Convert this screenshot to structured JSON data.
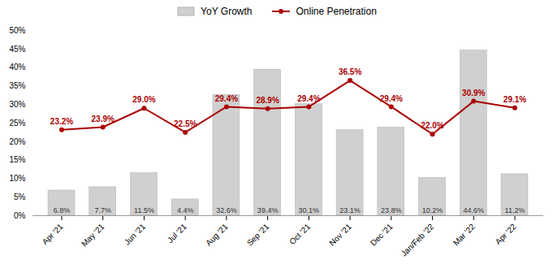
{
  "chart_data": {
    "type": "bar",
    "categories": [
      "Apr '21",
      "May '21",
      "Jun '21",
      "Jul '21",
      "Aug '21",
      "Sep '21",
      "Oct '21",
      "Nov '21",
      "Dec '21",
      "Jan/Feb '22",
      "Mar '22",
      "Apr '22"
    ],
    "series": [
      {
        "name": "YoY Growth",
        "type": "bar",
        "color": "#d0d0d0",
        "values": [
          6.8,
          7.7,
          11.5,
          4.4,
          32.6,
          39.4,
          30.1,
          23.1,
          23.8,
          10.2,
          44.6,
          11.2
        ],
        "value_labels": [
          "6.8%",
          "7.7%",
          "11.5%",
          "4.4%",
          "32.6%",
          "39.4%",
          "30.1%",
          "23.1%",
          "23.8%",
          "10.2%",
          "44.6%",
          "11.2%"
        ]
      },
      {
        "name": "Online Penetration",
        "type": "line",
        "color": "#aa0000",
        "marker": "circle",
        "values": [
          23.2,
          23.9,
          29.0,
          22.5,
          29.4,
          28.9,
          29.4,
          36.5,
          29.4,
          22.0,
          30.9,
          29.1
        ],
        "value_labels": [
          "23.2%",
          "23.9%",
          "29.0%",
          "22.5%",
          "29.4%",
          "28.9%",
          "29.4%",
          "36.5%",
          "29.4%",
          "22.0%",
          "30.9%",
          "29.1%"
        ]
      }
    ],
    "ylim": [
      0,
      50
    ],
    "yticks": [
      {
        "value": 0,
        "label": "0%"
      },
      {
        "value": 5,
        "label": "5%"
      },
      {
        "value": 10,
        "label": "10%"
      },
      {
        "value": 15,
        "label": "15%"
      },
      {
        "value": 20,
        "label": "20%"
      },
      {
        "value": 25,
        "label": "25%"
      },
      {
        "value": 30,
        "label": "30%"
      },
      {
        "value": 35,
        "label": "35%"
      },
      {
        "value": 40,
        "label": "40%"
      },
      {
        "value": 45,
        "label": "45%"
      },
      {
        "value": 50,
        "label": "50%"
      }
    ],
    "grid": false,
    "legend": "top",
    "data_labels": true
  }
}
